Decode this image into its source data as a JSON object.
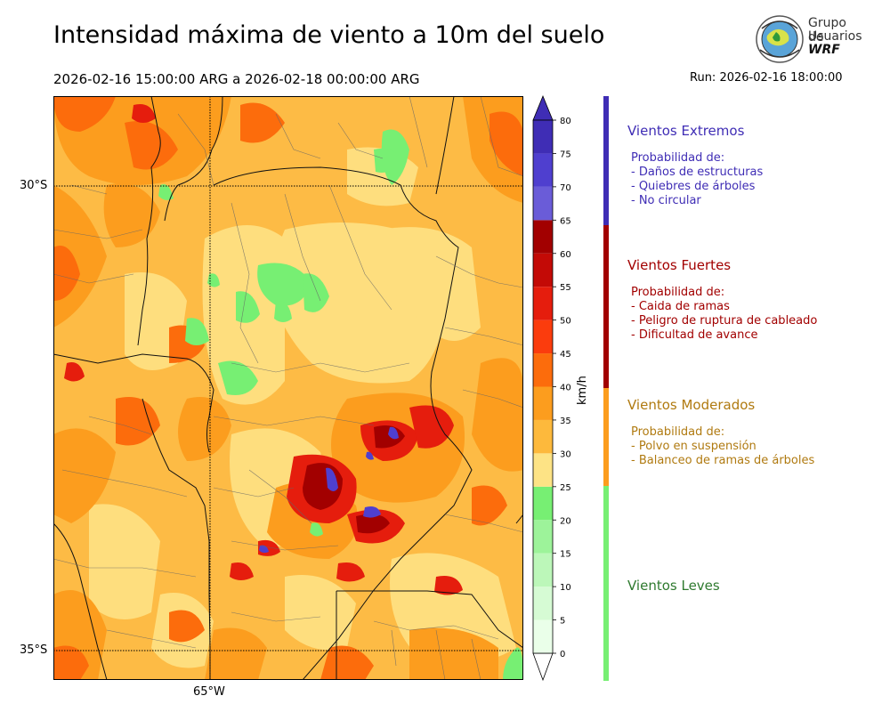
{
  "header": {
    "title": "Intensidad máxima de viento a 10m del suelo",
    "period": "2026-02-16 15:00:00 ARG  a  2026-02-18 00:00:00 ARG",
    "run": "Run: 2026-02-16 18:00:00"
  },
  "logo": {
    "line1": "Grupo de",
    "line2": "Usuarios",
    "line3": "WRF"
  },
  "map": {
    "lat_labels": [
      "30°S",
      "35°S"
    ],
    "lon_labels": [
      "65°W"
    ],
    "colors": {
      "yellow": "#fede7e",
      "orange_light": "#fdb93c",
      "orange": "#fc9d1e",
      "orange_dark": "#fc6c0c",
      "red": "#e51d0d",
      "dark_red": "#b80000",
      "green": "#77f07a",
      "purple": "#4f3fcf"
    }
  },
  "colorbar": {
    "unit": "km/h",
    "ticks": [
      "0",
      "5",
      "10",
      "15",
      "20",
      "25",
      "30",
      "35",
      "40",
      "45",
      "50",
      "55",
      "60",
      "65",
      "70",
      "75",
      "80"
    ],
    "colors": [
      "#eaffe9",
      "#d6fbd4",
      "#bcf7b9",
      "#9df39a",
      "#77ef73",
      "#fde385",
      "#fdb93c",
      "#fc9d1e",
      "#fc6c0c",
      "#fb3c0d",
      "#e51d0d",
      "#c30a06",
      "#a20000",
      "#6a5cd8",
      "#4f3fcf",
      "#3f2db5"
    ],
    "under_color": "#ffffff",
    "over_color": "#3f2db5"
  },
  "legend": {
    "categories": [
      {
        "title": "Vientos Extremos",
        "prefix": "Probabilidad de:",
        "items": [
          "- Daños de estructuras",
          "- Quiebres de árboles",
          "- No circular"
        ],
        "color": "#3f2db5",
        "bar_color": "#3f2db5"
      },
      {
        "title": "Vientos Fuertes",
        "prefix": "Probabilidad de:",
        "items": [
          "- Caida de ramas",
          "- Peligro de ruptura de cableado",
          "- Dificultad de avance"
        ],
        "color": "#a20000",
        "bar_color": "#a20000"
      },
      {
        "title": "Vientos Moderados",
        "prefix": "Probabilidad de:",
        "items": [
          "- Polvo en suspensión",
          "- Balanceo de ramas de árboles"
        ],
        "color": "#b07a10",
        "bar_color": "#fc9d1e"
      },
      {
        "title": "Vientos Leves",
        "prefix": "",
        "items": [],
        "color": "#2f7a2f",
        "bar_color": "#77ef73"
      }
    ]
  }
}
